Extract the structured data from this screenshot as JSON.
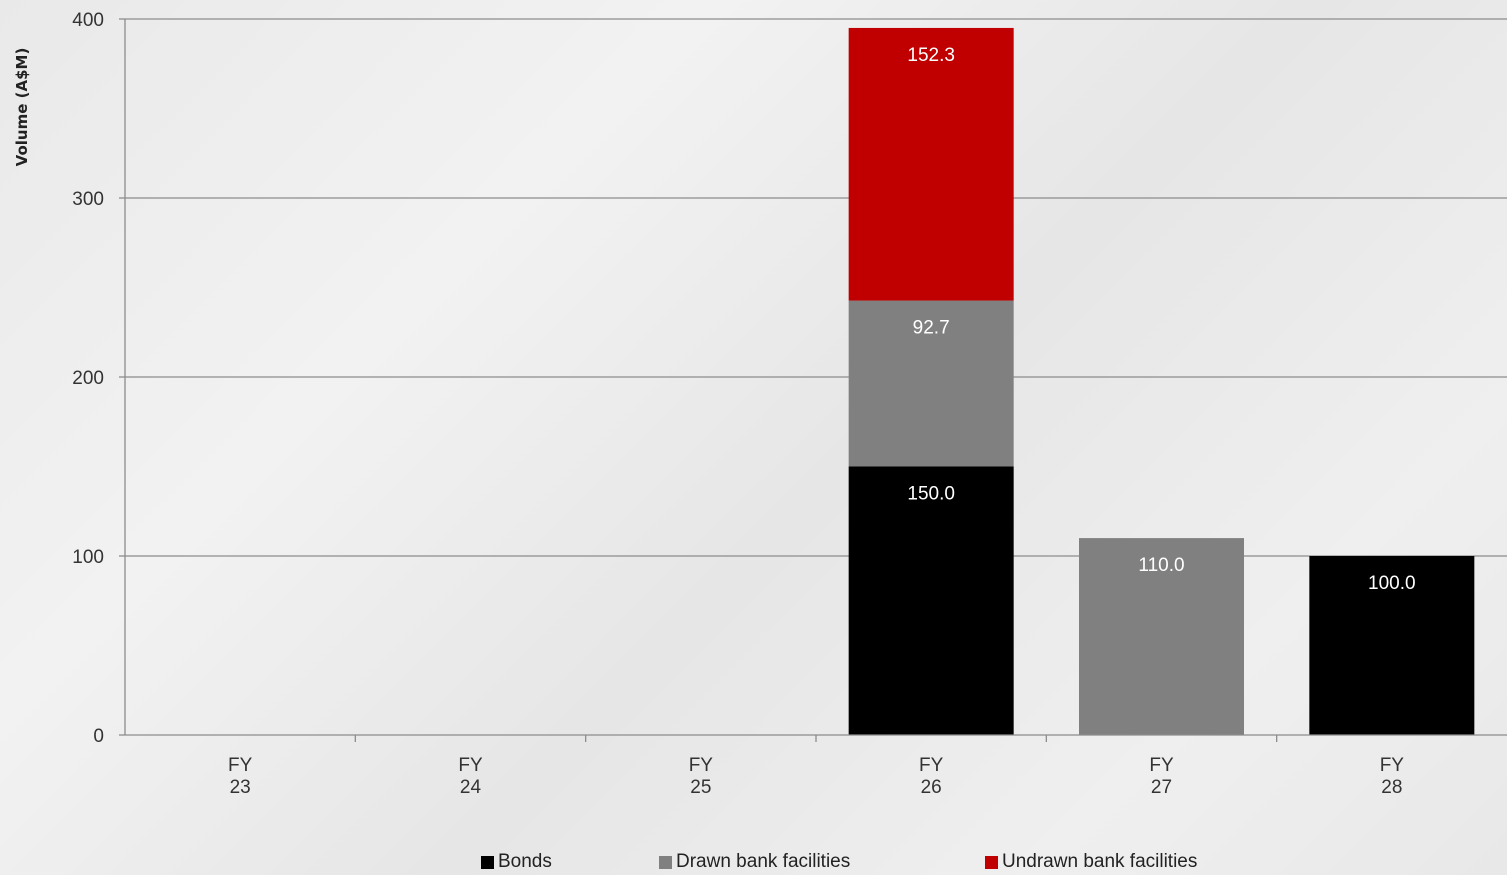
{
  "chart_data": {
    "type": "bar",
    "stacked": true,
    "title": "",
    "xlabel": "",
    "ylabel": "Volume (A$M)",
    "ylim": [
      0,
      400
    ],
    "yticks": [
      0,
      100,
      200,
      300,
      400
    ],
    "categories": [
      [
        "FY",
        "23"
      ],
      [
        "FY",
        "24"
      ],
      [
        "FY",
        "25"
      ],
      [
        "FY",
        "26"
      ],
      [
        "FY",
        "27"
      ],
      [
        "FY",
        "28"
      ]
    ],
    "series": [
      {
        "name": "Bonds",
        "color": "#000000",
        "values": [
          0,
          0,
          0,
          150.0,
          0,
          100.0
        ],
        "labels": [
          "",
          "",
          "",
          "150.0",
          "",
          "100.0"
        ]
      },
      {
        "name": "Drawn bank facilities",
        "color": "#808080",
        "values": [
          0,
          0,
          0,
          92.7,
          110.0,
          0
        ],
        "labels": [
          "",
          "",
          "",
          "92.7",
          "110.0",
          ""
        ]
      },
      {
        "name": "Undrawn bank facilities",
        "color": "#c00000",
        "values": [
          0,
          0,
          0,
          152.3,
          0,
          0
        ],
        "labels": [
          "",
          "",
          "",
          "152.3",
          "",
          ""
        ]
      }
    ],
    "grid": true,
    "legend_position": "bottom"
  }
}
